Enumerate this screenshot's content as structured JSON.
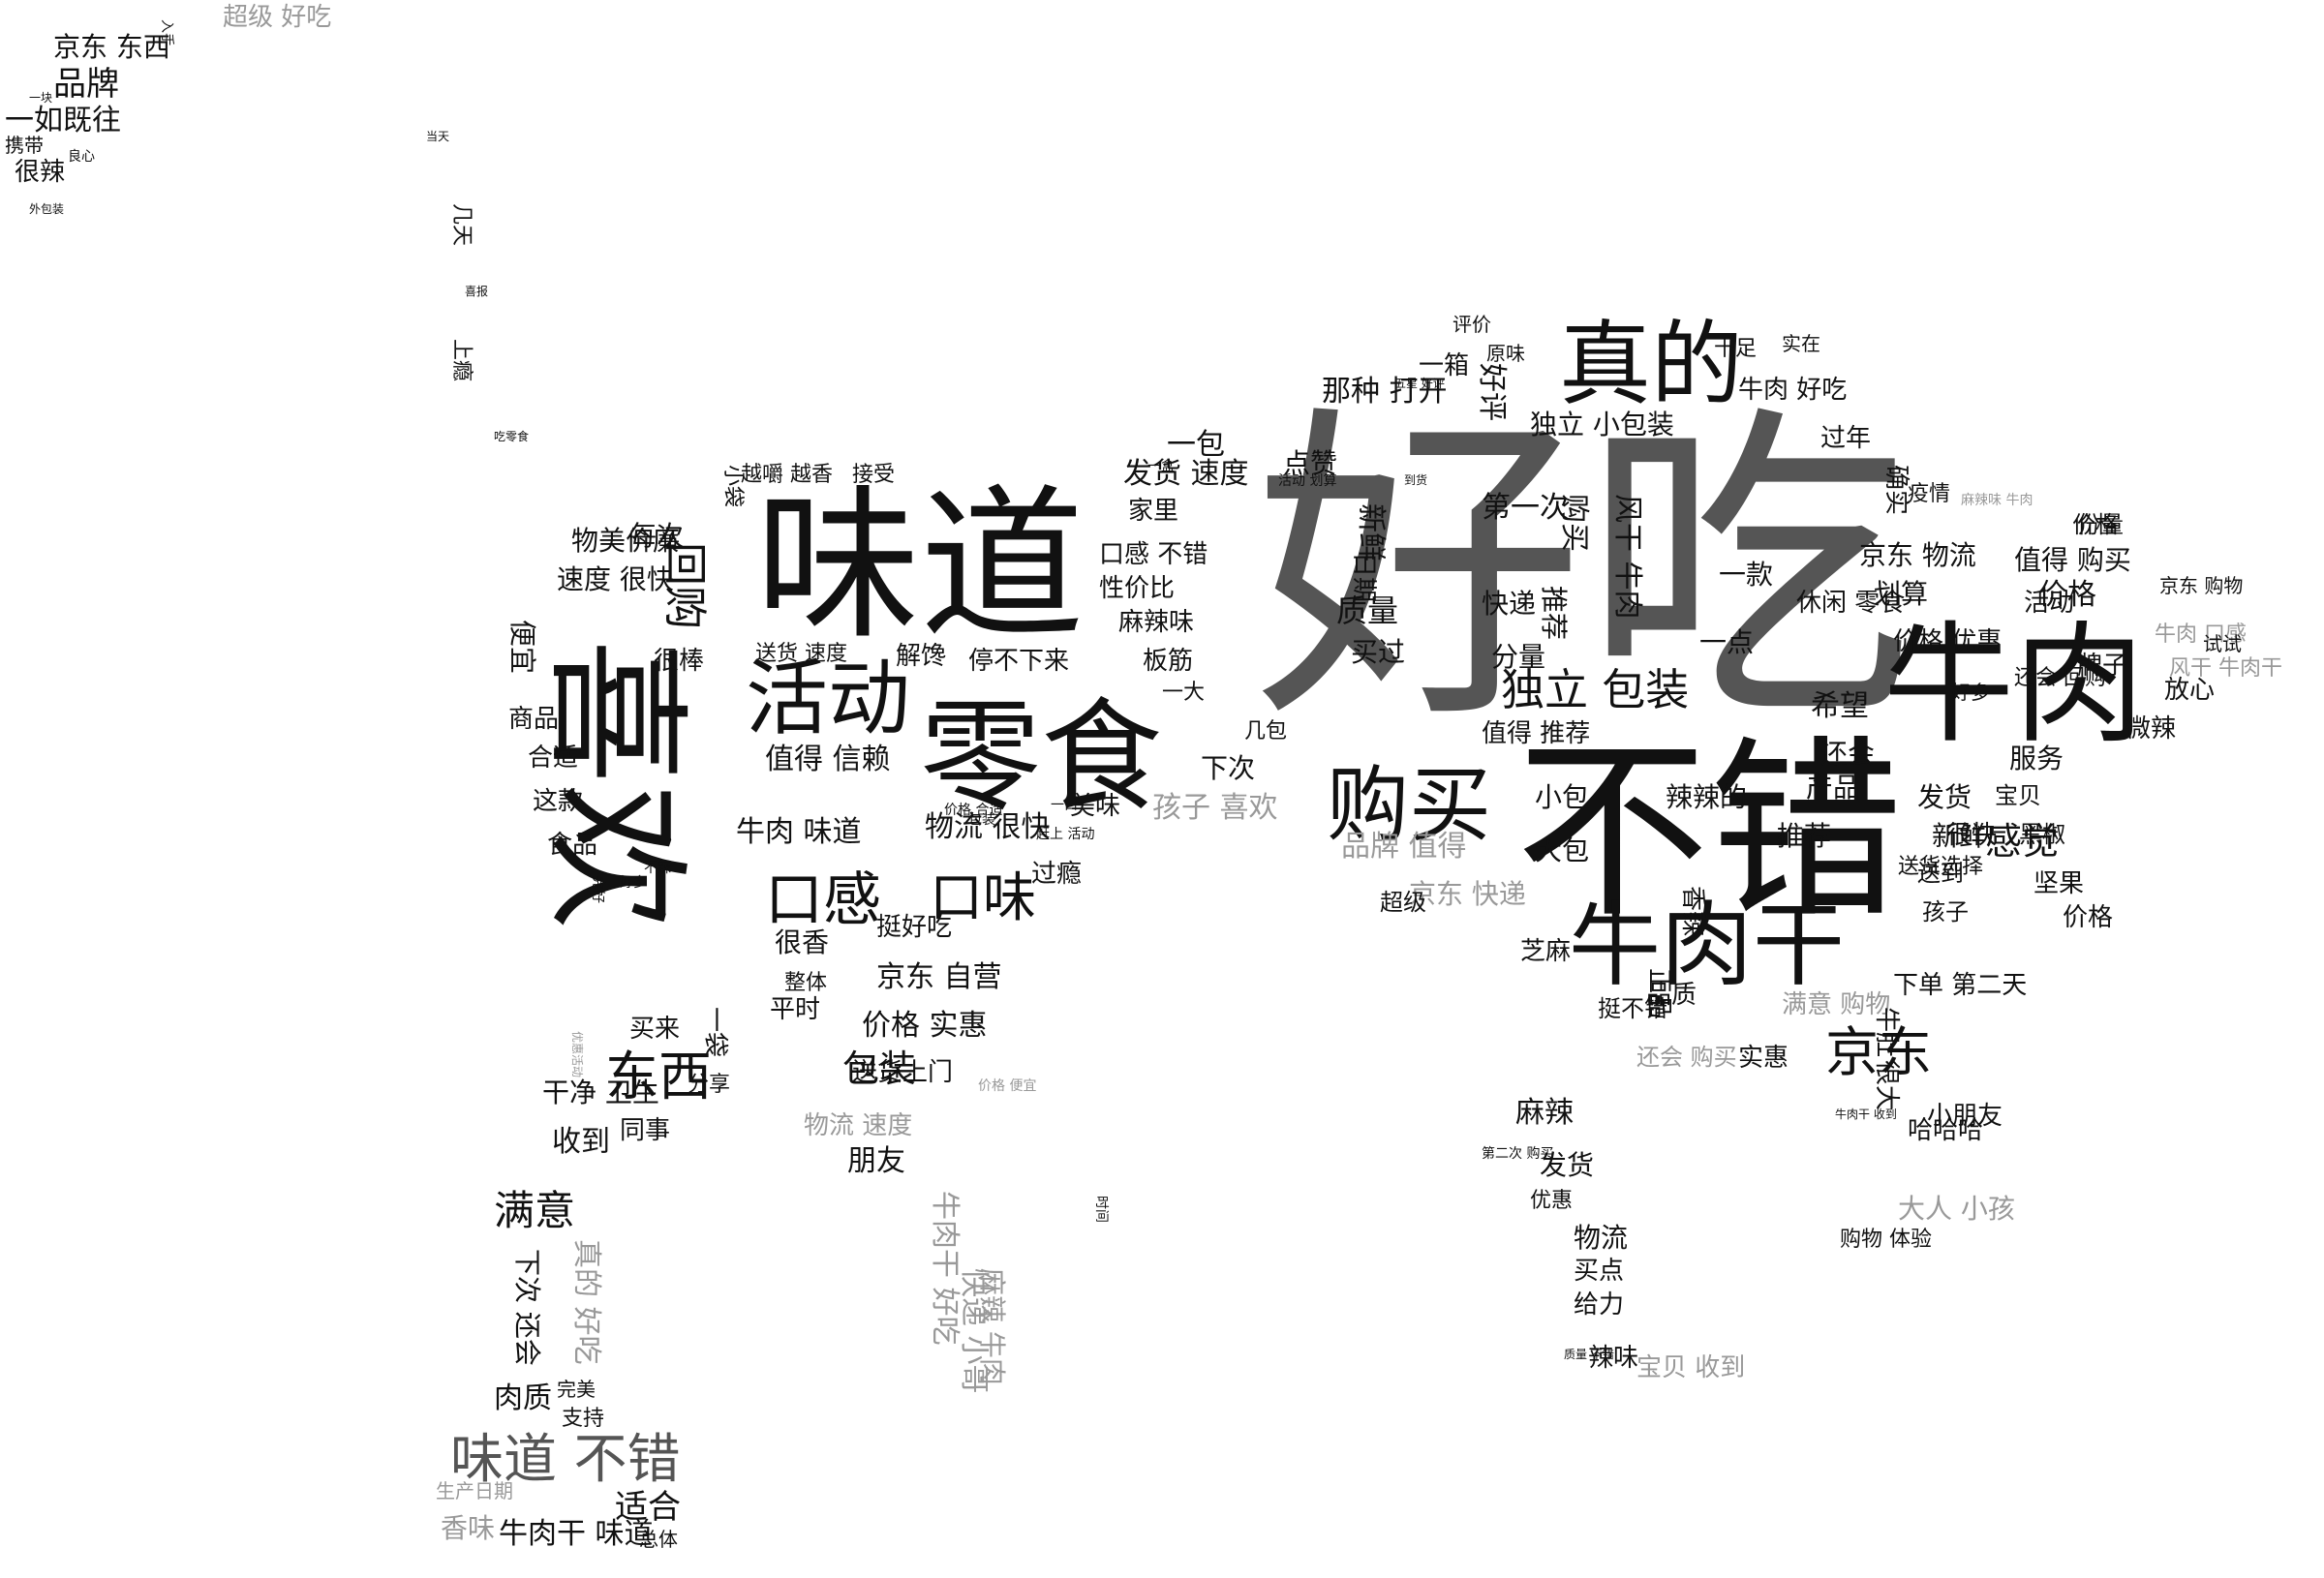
{
  "colors": {
    "dark": "#111111",
    "mid": "#555555",
    "light": "#999999",
    "background": "#ffffff"
  },
  "words": [
    {
      "text": "好吃",
      "tone": "mid"
    },
    {
      "text": "味道",
      "tone": "dark"
    },
    {
      "text": "不错",
      "tone": "dark"
    },
    {
      "text": "牛肉",
      "tone": "dark"
    },
    {
      "text": "喜欢",
      "tone": "dark"
    },
    {
      "text": "零食",
      "tone": "dark"
    },
    {
      "text": "真的",
      "tone": "dark"
    },
    {
      "text": "牛肉干",
      "tone": "dark"
    },
    {
      "text": "活动",
      "tone": "dark"
    },
    {
      "text": "购买",
      "tone": "dark"
    },
    {
      "text": "口感",
      "tone": "dark"
    },
    {
      "text": "口味",
      "tone": "dark"
    },
    {
      "text": "京东",
      "tone": "dark"
    },
    {
      "text": "东西",
      "tone": "dark"
    },
    {
      "text": "独立 包装",
      "tone": "dark"
    },
    {
      "text": "味道 不错",
      "tone": "mid"
    },
    {
      "text": "满意",
      "tone": "dark"
    },
    {
      "text": "包装",
      "tone": "dark"
    },
    {
      "text": "感觉",
      "tone": "dark"
    },
    {
      "text": "价格",
      "tone": "dark"
    },
    {
      "text": "回购",
      "tone": "dark"
    },
    {
      "text": "京东 东西",
      "tone": "dark"
    },
    {
      "text": "品牌",
      "tone": "dark"
    },
    {
      "text": "一如既往",
      "tone": "dark"
    },
    {
      "text": "很辣",
      "tone": "dark"
    },
    {
      "text": "超级 好吃",
      "tone": "light"
    },
    {
      "text": "携带",
      "tone": "dark"
    },
    {
      "text": "值得 信赖",
      "tone": "dark"
    },
    {
      "text": "牛肉 味道",
      "tone": "dark"
    },
    {
      "text": "物流 很快",
      "tone": "dark"
    },
    {
      "text": "京东 自营",
      "tone": "dark"
    },
    {
      "text": "价格 实惠",
      "tone": "dark"
    },
    {
      "text": "送货上门",
      "tone": "dark"
    },
    {
      "text": "物流 速度",
      "tone": "light"
    },
    {
      "text": "朋友",
      "tone": "dark"
    },
    {
      "text": "物美价廉",
      "tone": "dark"
    },
    {
      "text": "速度 很快",
      "tone": "dark"
    },
    {
      "text": "便宜",
      "tone": "dark"
    },
    {
      "text": "每次",
      "tone": "dark"
    },
    {
      "text": "很棒",
      "tone": "dark"
    },
    {
      "text": "商品",
      "tone": "dark"
    },
    {
      "text": "合适",
      "tone": "dark"
    },
    {
      "text": "这款",
      "tone": "dark"
    },
    {
      "text": "食品",
      "tone": "dark"
    },
    {
      "text": "收到",
      "tone": "dark"
    },
    {
      "text": "干净 卫生",
      "tone": "dark"
    },
    {
      "text": "同事",
      "tone": "dark"
    },
    {
      "text": "买来",
      "tone": "dark"
    },
    {
      "text": "很香",
      "tone": "dark"
    },
    {
      "text": "整体",
      "tone": "dark"
    },
    {
      "text": "平时",
      "tone": "dark"
    },
    {
      "text": "分享",
      "tone": "dark"
    },
    {
      "text": "一袋",
      "tone": "dark"
    },
    {
      "text": "肉质",
      "tone": "dark"
    },
    {
      "text": "完美",
      "tone": "dark"
    },
    {
      "text": "支持",
      "tone": "dark"
    },
    {
      "text": "适合",
      "tone": "dark"
    },
    {
      "text": "香味",
      "tone": "light"
    },
    {
      "text": "牛肉干 味道",
      "tone": "dark"
    },
    {
      "text": "生产日期",
      "tone": "light"
    },
    {
      "text": "总体",
      "tone": "dark"
    },
    {
      "text": "真的 好吃",
      "tone": "light"
    },
    {
      "text": "下次 还会",
      "tone": "dark"
    },
    {
      "text": "牛肉干 好吃",
      "tone": "light"
    },
    {
      "text": "快递 小哥",
      "tone": "light"
    },
    {
      "text": "麻辣 牛肉",
      "tone": "light"
    },
    {
      "text": "挺好吃",
      "tone": "dark"
    },
    {
      "text": "过瘾",
      "tone": "dark"
    },
    {
      "text": "美味",
      "tone": "dark"
    },
    {
      "text": "停不下来",
      "tone": "dark"
    },
    {
      "text": "解馋",
      "tone": "dark"
    },
    {
      "text": "送货 速度",
      "tone": "dark"
    },
    {
      "text": "小袋",
      "tone": "dark"
    },
    {
      "text": "越嚼 越香",
      "tone": "dark"
    },
    {
      "text": "接受",
      "tone": "dark"
    },
    {
      "text": "一包",
      "tone": "dark"
    },
    {
      "text": "发货 速度",
      "tone": "dark"
    },
    {
      "text": "家里",
      "tone": "dark"
    },
    {
      "text": "口感 不错",
      "tone": "dark"
    },
    {
      "text": "性价比",
      "tone": "dark"
    },
    {
      "text": "麻辣味",
      "tone": "dark"
    },
    {
      "text": "板筋",
      "tone": "dark"
    },
    {
      "text": "一大",
      "tone": "dark"
    },
    {
      "text": "下次",
      "tone": "dark"
    },
    {
      "text": "孩子 喜欢",
      "tone": "light"
    },
    {
      "text": "品牌 值得",
      "tone": "light"
    },
    {
      "text": "京东 快递",
      "tone": "light"
    },
    {
      "text": "几包",
      "tone": "dark"
    },
    {
      "text": "那种 打开",
      "tone": "dark"
    },
    {
      "text": "点赞",
      "tone": "dark"
    },
    {
      "text": "质量",
      "tone": "dark"
    },
    {
      "text": "买过",
      "tone": "dark"
    },
    {
      "text": "新鲜",
      "tone": "dark"
    },
    {
      "text": "日期",
      "tone": "dark"
    },
    {
      "text": "一箱",
      "tone": "dark"
    },
    {
      "text": "好评",
      "tone": "dark"
    },
    {
      "text": "评价",
      "tone": "dark"
    },
    {
      "text": "原味",
      "tone": "dark"
    },
    {
      "text": "独立 小包装",
      "tone": "dark"
    },
    {
      "text": "第一次",
      "tone": "dark"
    },
    {
      "text": "购买",
      "tone": "dark"
    },
    {
      "text": "风干 牛肉",
      "tone": "dark"
    },
    {
      "text": "快递",
      "tone": "dark"
    },
    {
      "text": "推荐",
      "tone": "dark"
    },
    {
      "text": "分量",
      "tone": "dark"
    },
    {
      "text": "值得 推荐",
      "tone": "dark"
    },
    {
      "text": "一点",
      "tone": "dark"
    },
    {
      "text": "一款",
      "tone": "dark"
    },
    {
      "text": "十足",
      "tone": "dark"
    },
    {
      "text": "实在",
      "tone": "dark"
    },
    {
      "text": "牛肉 好吃",
      "tone": "dark"
    },
    {
      "text": "过年",
      "tone": "dark"
    },
    {
      "text": "确实",
      "tone": "dark"
    },
    {
      "text": "疫情",
      "tone": "dark"
    },
    {
      "text": "京东 物流",
      "tone": "dark"
    },
    {
      "text": "值得 购买",
      "tone": "dark"
    },
    {
      "text": "划算",
      "tone": "dark"
    },
    {
      "text": "活动",
      "tone": "dark"
    },
    {
      "text": "价格",
      "tone": "dark"
    },
    {
      "text": "休闲 零食",
      "tone": "dark"
    },
    {
      "text": "价格 优惠",
      "tone": "dark"
    },
    {
      "text": "发货",
      "tone": "dark"
    },
    {
      "text": "很快",
      "tone": "dark"
    },
    {
      "text": "送货选择",
      "tone": "dark"
    },
    {
      "text": "好多",
      "tone": "dark"
    },
    {
      "text": "希望",
      "tone": "dark"
    },
    {
      "text": "还会 回购",
      "tone": "dark"
    },
    {
      "text": "还会",
      "tone": "dark"
    },
    {
      "text": "产品",
      "tone": "dark"
    },
    {
      "text": "服务",
      "tone": "dark"
    },
    {
      "text": "推荐",
      "tone": "dark"
    },
    {
      "text": "新鲜",
      "tone": "dark"
    },
    {
      "text": "宝贝",
      "tone": "dark"
    },
    {
      "text": "送到",
      "tone": "dark"
    },
    {
      "text": "孩子",
      "tone": "dark"
    },
    {
      "text": "坚果",
      "tone": "dark"
    },
    {
      "text": "价格",
      "tone": "dark"
    },
    {
      "text": "黑椒",
      "tone": "dark"
    },
    {
      "text": "牌子",
      "tone": "dark"
    },
    {
      "text": "微辣",
      "tone": "dark"
    },
    {
      "text": "放心",
      "tone": "dark"
    },
    {
      "text": "小包",
      "tone": "dark"
    },
    {
      "text": "辣辣的",
      "tone": "dark"
    },
    {
      "text": "大包",
      "tone": "dark"
    },
    {
      "text": "香辣",
      "tone": "dark"
    },
    {
      "text": "芝麻",
      "tone": "dark"
    },
    {
      "text": "品质",
      "tone": "dark"
    },
    {
      "text": "挺不错",
      "tone": "dark"
    },
    {
      "text": "满意 购物",
      "tone": "light"
    },
    {
      "text": "下单 第二天",
      "tone": "dark"
    },
    {
      "text": "牛肚",
      "tone": "dark"
    },
    {
      "text": "实惠",
      "tone": "dark"
    },
    {
      "text": "还会 购买",
      "tone": "light"
    },
    {
      "text": "麻辣",
      "tone": "dark"
    },
    {
      "text": "发货",
      "tone": "dark"
    },
    {
      "text": "优惠",
      "tone": "dark"
    },
    {
      "text": "物流",
      "tone": "dark"
    },
    {
      "text": "买点",
      "tone": "dark"
    },
    {
      "text": "给力",
      "tone": "dark"
    },
    {
      "text": "辣味",
      "tone": "dark"
    },
    {
      "text": "宝贝 收到",
      "tone": "light"
    },
    {
      "text": "哈哈哈",
      "tone": "dark"
    },
    {
      "text": "大人 小孩",
      "tone": "light"
    },
    {
      "text": "购物 体验",
      "tone": "dark"
    },
    {
      "text": "小朋友",
      "tone": "dark"
    },
    {
      "text": "很大",
      "tone": "dark"
    },
    {
      "text": "正品",
      "tone": "dark"
    },
    {
      "text": "超级",
      "tone": "dark"
    },
    {
      "text": "份量",
      "tone": "dark"
    },
    {
      "text": "京东 购物",
      "tone": "dark"
    },
    {
      "text": "牛肉 口感",
      "tone": "light"
    },
    {
      "text": "风干 牛肉干",
      "tone": "light"
    },
    {
      "text": "试试",
      "tone": "dark"
    },
    {
      "text": "几天",
      "tone": "dark"
    },
    {
      "text": "上瘾",
      "tone": "dark"
    },
    {
      "text": "当天",
      "tone": "dark"
    },
    {
      "text": "吃零食",
      "tone": "dark"
    },
    {
      "text": "喜报",
      "tone": "dark"
    },
    {
      "text": "一块",
      "tone": "dark"
    },
    {
      "text": "良心",
      "tone": "dark"
    },
    {
      "text": "外包装",
      "tone": "dark"
    },
    {
      "text": "到货",
      "tone": "dark"
    },
    {
      "text": "入手",
      "tone": "dark"
    },
    {
      "text": "价格 合适",
      "tone": "dark"
    },
    {
      "text": "一口",
      "tone": "dark"
    },
    {
      "text": "赶上 活动",
      "tone": "dark"
    },
    {
      "text": "不辣",
      "tone": "dark"
    },
    {
      "text": "好多",
      "tone": "dark"
    },
    {
      "text": "完好",
      "tone": "dark"
    },
    {
      "text": "包装",
      "tone": "dark"
    },
    {
      "text": "时间",
      "tone": "dark"
    },
    {
      "text": "价格 便宜",
      "tone": "light"
    },
    {
      "text": "优惠活动",
      "tone": "light"
    },
    {
      "text": "质量 不错",
      "tone": "dark"
    },
    {
      "text": "牛肉干 收到",
      "tone": "dark"
    },
    {
      "text": "第二次 购买",
      "tone": "dark"
    },
    {
      "text": "一盒",
      "tone": "dark"
    },
    {
      "text": "五星 好评",
      "tone": "dark"
    },
    {
      "text": "活动 划算",
      "tone": "dark"
    },
    {
      "text": "麻辣味 牛肉",
      "tone": "light"
    }
  ]
}
